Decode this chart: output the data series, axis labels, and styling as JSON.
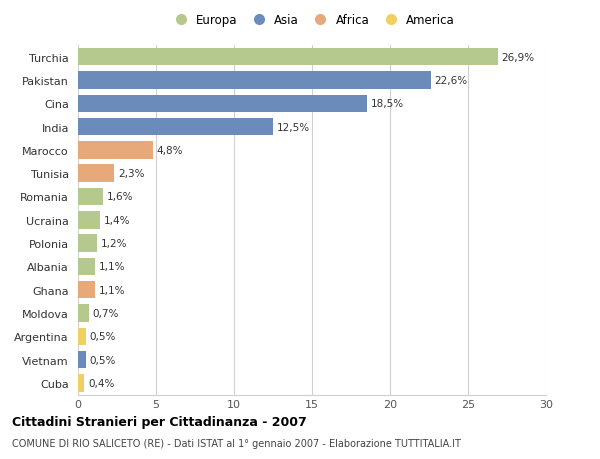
{
  "countries": [
    "Turchia",
    "Pakistan",
    "Cina",
    "India",
    "Marocco",
    "Tunisia",
    "Romania",
    "Ucraina",
    "Polonia",
    "Albania",
    "Ghana",
    "Moldova",
    "Argentina",
    "Vietnam",
    "Cuba"
  ],
  "values": [
    26.9,
    22.6,
    18.5,
    12.5,
    4.8,
    2.3,
    1.6,
    1.4,
    1.2,
    1.1,
    1.1,
    0.7,
    0.5,
    0.5,
    0.4
  ],
  "labels": [
    "26,9%",
    "22,6%",
    "18,5%",
    "12,5%",
    "4,8%",
    "2,3%",
    "1,6%",
    "1,4%",
    "1,2%",
    "1,1%",
    "1,1%",
    "0,7%",
    "0,5%",
    "0,5%",
    "0,4%"
  ],
  "regions": [
    "Europa",
    "Asia",
    "Asia",
    "Asia",
    "Africa",
    "Africa",
    "Europa",
    "Europa",
    "Europa",
    "Europa",
    "Africa",
    "Europa",
    "America",
    "Asia",
    "America"
  ],
  "region_colors": {
    "Europa": "#b5c98e",
    "Asia": "#6b8cba",
    "Africa": "#e8a97a",
    "America": "#f0d060"
  },
  "legend_order": [
    "Europa",
    "Asia",
    "Africa",
    "America"
  ],
  "title": "Cittadini Stranieri per Cittadinanza - 2007",
  "subtitle": "COMUNE DI RIO SALICETO (RE) - Dati ISTAT al 1° gennaio 2007 - Elaborazione TUTTITALIA.IT",
  "xlim": [
    0,
    30
  ],
  "xticks": [
    0,
    5,
    10,
    15,
    20,
    25,
    30
  ],
  "background_color": "#ffffff",
  "grid_color": "#d0d0d0",
  "bar_height": 0.75
}
